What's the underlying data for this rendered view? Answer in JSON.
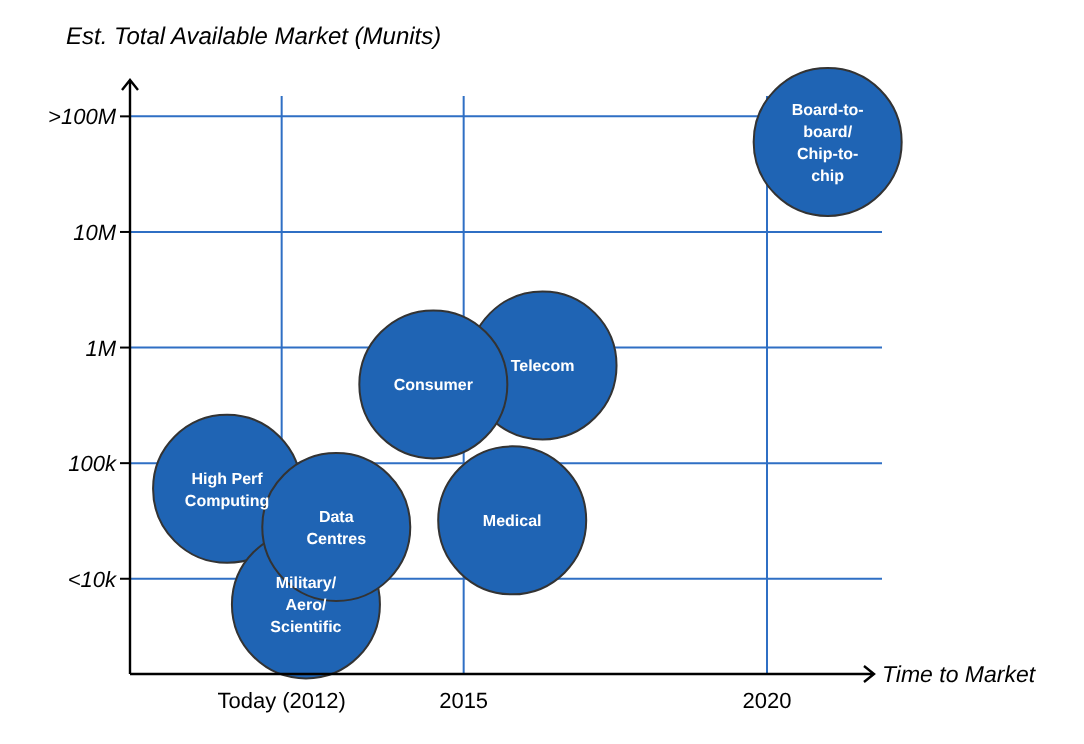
{
  "chart_data": {
    "type": "bubble",
    "xlabel": "Time to Market",
    "ylabel": "Est. Total Available Market (Munits)",
    "xlim": [
      2009.5,
      2021.5
    ],
    "xticks": [
      {
        "value": 2012,
        "label": "Today (2012)"
      },
      2015,
      2020
    ],
    "ylim": [
      1500,
      150000000
    ],
    "log": true,
    "yticks": [
      {
        "value": 10000,
        "label": "<10k"
      },
      {
        "value": 100000,
        "label": "100k"
      },
      {
        "value": 1000000,
        "label": "1M"
      },
      {
        "value": 10000000,
        "label": "10M"
      },
      {
        "value": 100000000,
        "label": ">100M"
      }
    ],
    "grid": true,
    "series": [
      {
        "name": "High Perf Computing",
        "color": "#1f64b4",
        "x": [
          2011.1
        ],
        "values": [
          60000
        ],
        "sizes": [
          1
        ]
      },
      {
        "name": "Military/Aero/Scientific",
        "color": "#1f64b4",
        "x": [
          2012.4
        ],
        "values": [
          6000
        ],
        "sizes": [
          1
        ]
      },
      {
        "name": "Data Centres",
        "color": "#1f64b4",
        "x": [
          2012.9
        ],
        "values": [
          28000
        ],
        "sizes": [
          1
        ]
      },
      {
        "name": "Telecom",
        "color": "#1f64b4",
        "x": [
          2016.3
        ],
        "values": [
          700000
        ],
        "sizes": [
          1
        ]
      },
      {
        "name": "Consumer",
        "color": "#1f64b4",
        "x": [
          2014.5
        ],
        "values": [
          480000
        ],
        "sizes": [
          1
        ]
      },
      {
        "name": "Medical",
        "color": "#1f64b4",
        "x": [
          2015.8
        ],
        "values": [
          32000
        ],
        "sizes": [
          1
        ]
      },
      {
        "name": "Board-to-board/Chip-to-chip",
        "color": "#1f64b4",
        "x": [
          2021
        ],
        "values": [
          60000000
        ],
        "sizes": [
          1
        ]
      }
    ]
  }
}
